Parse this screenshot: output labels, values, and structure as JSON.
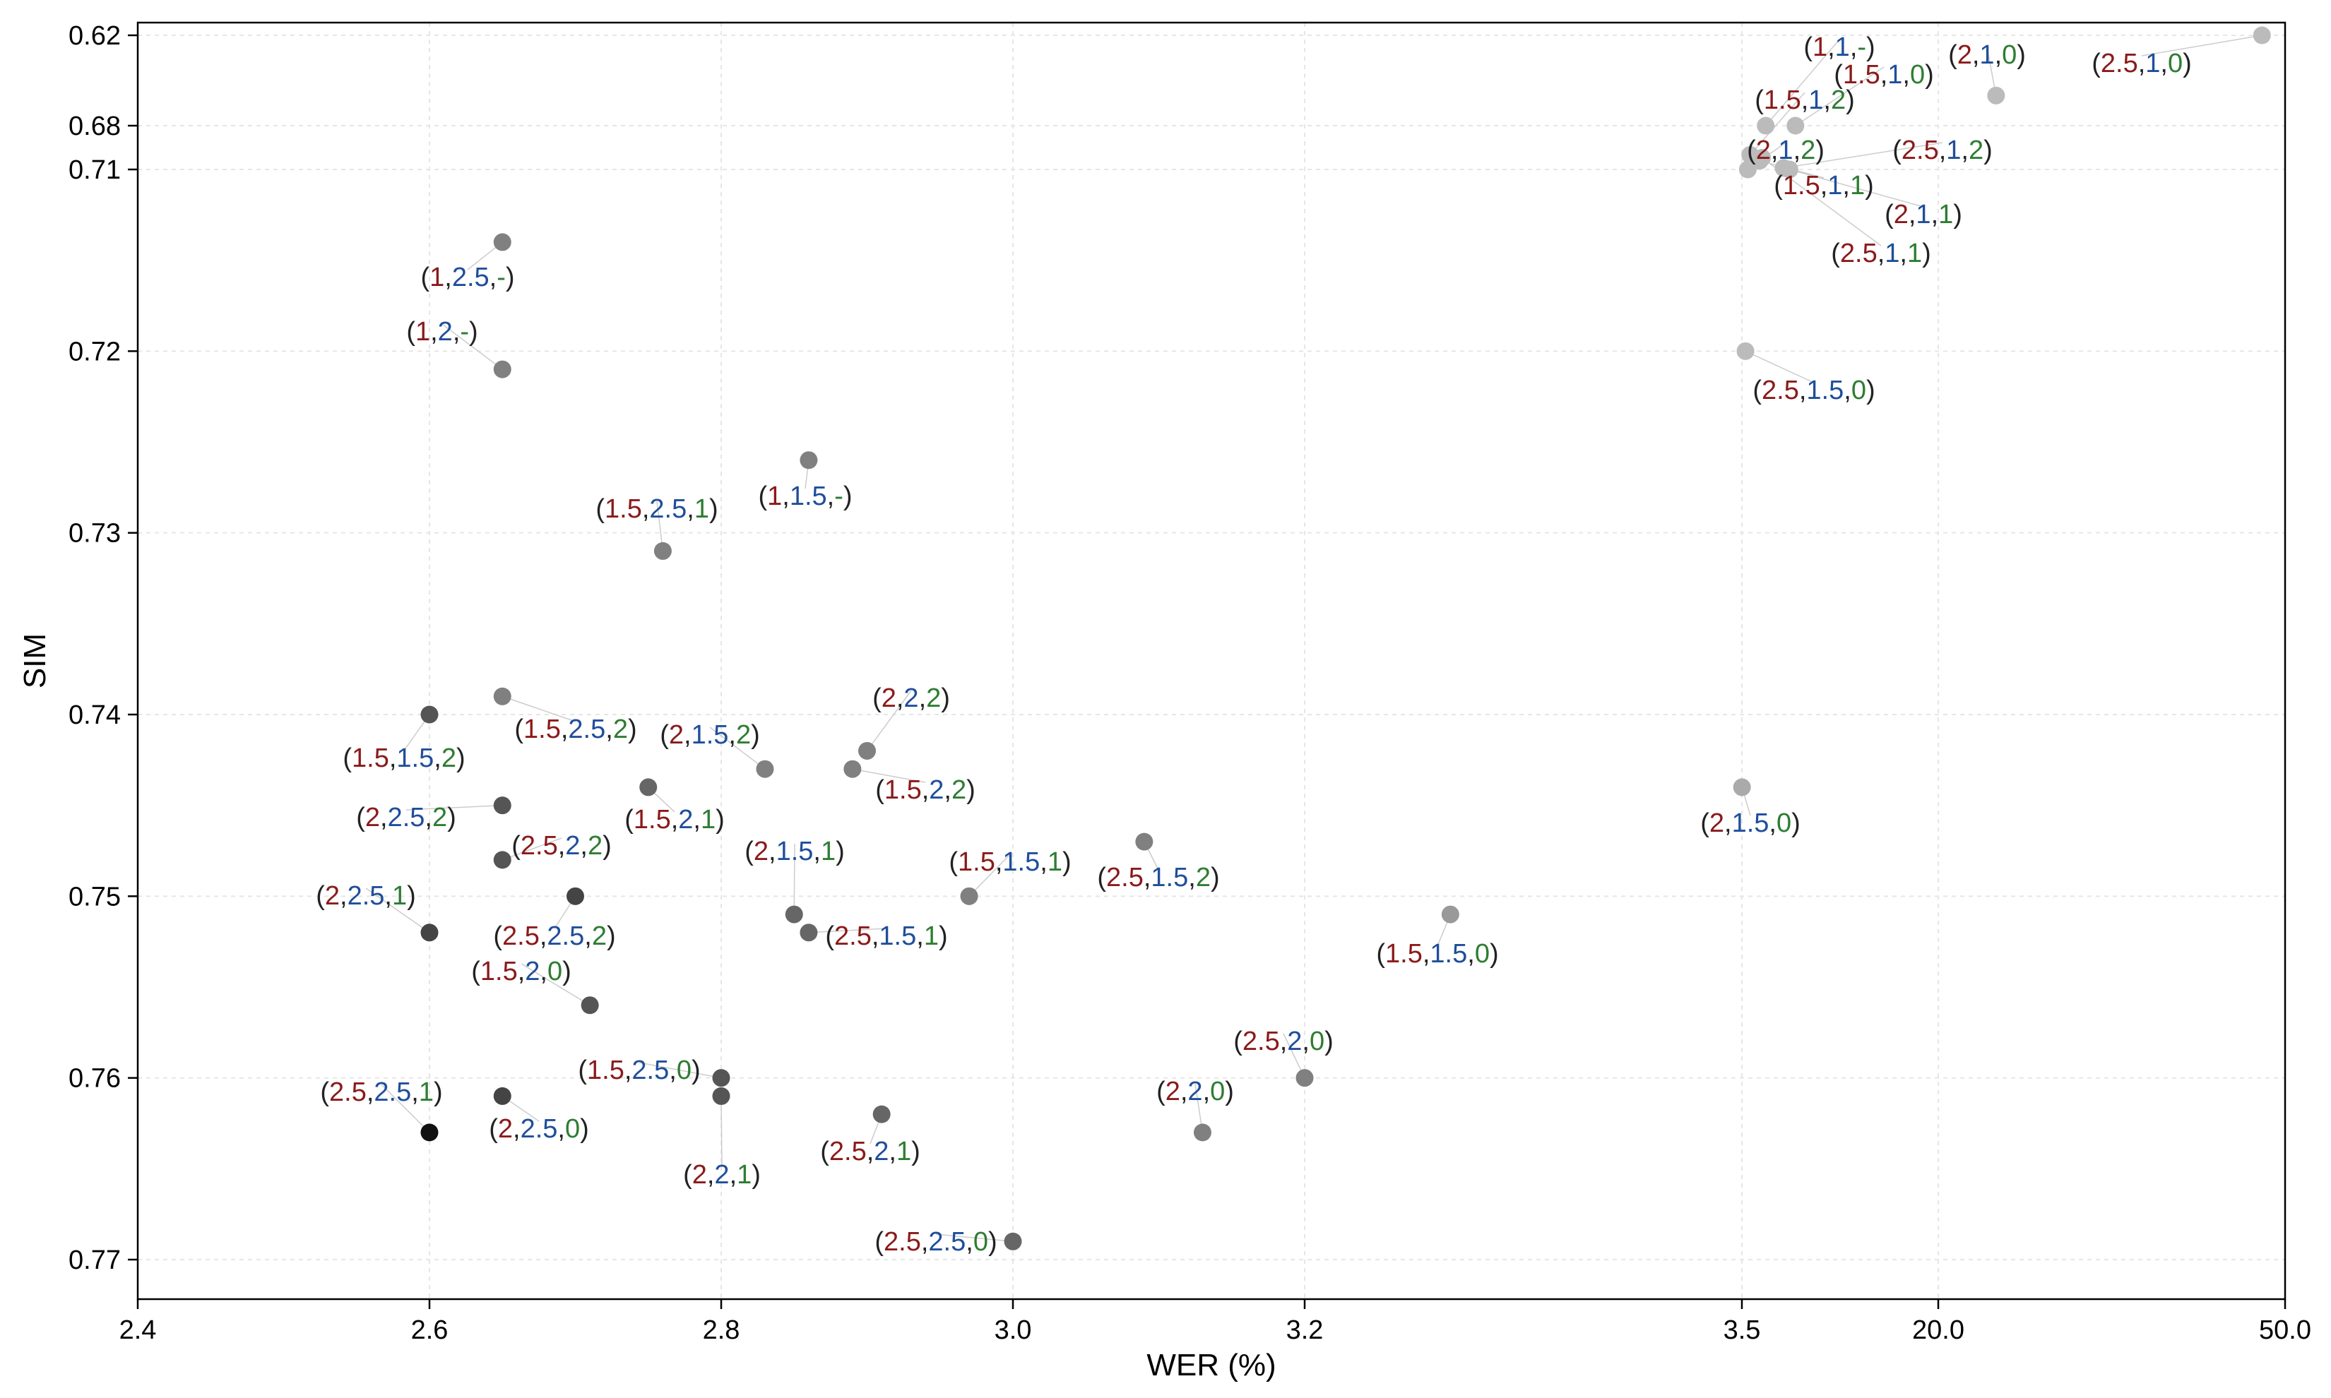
{
  "chart_data": {
    "type": "scatter",
    "title": "",
    "xlabel": "WER (%)",
    "ylabel": "SIM",
    "x_ticks": [
      "2.4",
      "2.6",
      "2.8",
      "3.0",
      "3.2",
      "3.5",
      "20.0",
      "50.0"
    ],
    "y_ticks": [
      "0.62",
      "0.68",
      "0.71",
      "0.72",
      "0.73",
      "0.74",
      "0.75",
      "0.76",
      "0.77"
    ],
    "x_axis_note": "broken non-linear axis: 2.4-3.2 linear, then 3.5, 20.0, 50.0",
    "y_axis_note": "inverted; 0.62-0.71 compressed, 0.71-0.77 linear",
    "grid": true,
    "label_colors": {
      "first": "#8b1a1a",
      "second": "#1f4e9b",
      "third": "#2e7d32",
      "paren": "#222222"
    },
    "points": [
      {
        "label": [
          "1",
          "2.5",
          "-"
        ],
        "wer": 2.65,
        "sim": 0.714,
        "shade": "#808080"
      },
      {
        "label": [
          "1",
          "2",
          "-"
        ],
        "wer": 2.65,
        "sim": 0.721,
        "shade": "#808080"
      },
      {
        "label": [
          "1",
          "1.5",
          "-"
        ],
        "wer": 2.86,
        "sim": 0.726,
        "shade": "#808080"
      },
      {
        "label": [
          "1.5",
          "2.5",
          "1"
        ],
        "wer": 2.76,
        "sim": 0.731,
        "shade": "#808080"
      },
      {
        "label": [
          "1.5",
          "2.5",
          "2"
        ],
        "wer": 2.65,
        "sim": 0.739,
        "shade": "#808080"
      },
      {
        "label": [
          "1.5",
          "1.5",
          "2"
        ],
        "wer": 2.6,
        "sim": 0.74,
        "shade": "#555555"
      },
      {
        "label": [
          "2",
          "1.5",
          "2"
        ],
        "wer": 2.83,
        "sim": 0.743,
        "shade": "#808080"
      },
      {
        "label": [
          "2",
          "2",
          "2"
        ],
        "wer": 2.9,
        "sim": 0.742,
        "shade": "#808080"
      },
      {
        "label": [
          "1.5",
          "2",
          "2"
        ],
        "wer": 2.89,
        "sim": 0.743,
        "shade": "#808080"
      },
      {
        "label": [
          "1.5",
          "2",
          "1"
        ],
        "wer": 2.75,
        "sim": 0.744,
        "shade": "#666666"
      },
      {
        "label": [
          "2",
          "2.5",
          "2"
        ],
        "wer": 2.65,
        "sim": 0.745,
        "shade": "#555555"
      },
      {
        "label": [
          "2.5",
          "2",
          "2"
        ],
        "wer": 2.65,
        "sim": 0.748,
        "shade": "#555555"
      },
      {
        "label": [
          "2",
          "1.5",
          "1"
        ],
        "wer": 2.85,
        "sim": 0.751,
        "shade": "#666666"
      },
      {
        "label": [
          "1.5",
          "1.5",
          "1"
        ],
        "wer": 2.97,
        "sim": 0.75,
        "shade": "#808080"
      },
      {
        "label": [
          "2.5",
          "1.5",
          "2"
        ],
        "wer": 3.09,
        "sim": 0.747,
        "shade": "#808080"
      },
      {
        "label": [
          "2",
          "2.5",
          "1"
        ],
        "wer": 2.6,
        "sim": 0.752,
        "shade": "#444444"
      },
      {
        "label": [
          "2.5",
          "2.5",
          "2"
        ],
        "wer": 2.7,
        "sim": 0.75,
        "shade": "#444444"
      },
      {
        "label": [
          "2.5",
          "1.5",
          "1"
        ],
        "wer": 2.86,
        "sim": 0.752,
        "shade": "#666666"
      },
      {
        "label": [
          "1.5",
          "2",
          "0"
        ],
        "wer": 2.71,
        "sim": 0.756,
        "shade": "#555555"
      },
      {
        "label": [
          "1.5",
          "2.5",
          "0"
        ],
        "wer": 2.8,
        "sim": 0.76,
        "shade": "#555555"
      },
      {
        "label": [
          "2.5",
          "2.5",
          "1"
        ],
        "wer": 2.6,
        "sim": 0.763,
        "shade": "#111111"
      },
      {
        "label": [
          "2",
          "2.5",
          "0"
        ],
        "wer": 2.65,
        "sim": 0.761,
        "shade": "#444444"
      },
      {
        "label": [
          "2",
          "2",
          "1"
        ],
        "wer": 2.8,
        "sim": 0.761,
        "shade": "#555555"
      },
      {
        "label": [
          "2.5",
          "2",
          "1"
        ],
        "wer": 2.91,
        "sim": 0.762,
        "shade": "#666666"
      },
      {
        "label": [
          "2.5",
          "2.5",
          "0"
        ],
        "wer": 3.0,
        "sim": 0.769,
        "shade": "#666666"
      },
      {
        "label": [
          "2",
          "2",
          "0"
        ],
        "wer": 3.13,
        "sim": 0.763,
        "shade": "#808080"
      },
      {
        "label": [
          "2.5",
          "2",
          "0"
        ],
        "wer": 3.2,
        "sim": 0.76,
        "shade": "#808080"
      },
      {
        "label": [
          "1.5",
          "1.5",
          "0"
        ],
        "wer": 3.3,
        "sim": 0.751,
        "shade": "#999999"
      },
      {
        "label": [
          "2",
          "1.5",
          "0"
        ],
        "wer": 3.51,
        "sim": 0.744,
        "shade": "#aaaaaa"
      },
      {
        "label": [
          "2.5",
          "1.5",
          "0"
        ],
        "wer": 3.8,
        "sim": 0.72,
        "shade": "#bbbbbb"
      },
      {
        "label": [
          "1",
          "1",
          "-"
        ],
        "wer": 5.5,
        "sim": 0.68,
        "shade": "#bbbbbb"
      },
      {
        "label": [
          "1.5",
          "1",
          "0"
        ],
        "wer": 8.0,
        "sim": 0.68,
        "shade": "#bbbbbb"
      },
      {
        "label": [
          "1.5",
          "1",
          "2"
        ],
        "wer": 4.2,
        "sim": 0.7,
        "shade": "#bbbbbb"
      },
      {
        "label": [
          "2",
          "1",
          "2"
        ],
        "wer": 4.0,
        "sim": 0.71,
        "shade": "#bbbbbb"
      },
      {
        "label": [
          "1.5",
          "1",
          "1"
        ],
        "wer": 5.0,
        "sim": 0.704,
        "shade": "#bbbbbb"
      },
      {
        "label": [
          "2.5",
          "1",
          "2"
        ],
        "wer": 7.0,
        "sim": 0.709,
        "shade": "#bbbbbb"
      },
      {
        "label": [
          "2",
          "1",
          "1"
        ],
        "wer": 7.5,
        "sim": 0.71,
        "shade": "#bbbbbb"
      },
      {
        "label": [
          "2.5",
          "1",
          "1"
        ],
        "wer": 5.2,
        "sim": 0.702,
        "shade": "#bbbbbb"
      },
      {
        "label": [
          "2",
          "1",
          "0"
        ],
        "wer": 25.0,
        "sim": 0.66,
        "shade": "#bbbbbb"
      },
      {
        "label": [
          "2.5",
          "1",
          "0"
        ],
        "wer": 48.0,
        "sim": 0.62,
        "shade": "#bbbbbb"
      }
    ]
  }
}
